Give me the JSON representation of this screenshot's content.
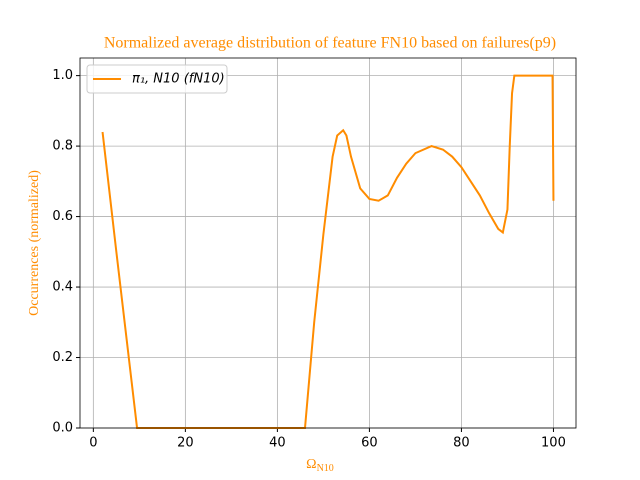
{
  "chart_data": {
    "type": "line",
    "title": "Normalized average distribution of feature FN10 based on failures(p9)",
    "xlabel": {
      "base": "Ω",
      "subscript": "N10"
    },
    "ylabel": "Occurrences (normalized)",
    "x": [
      2,
      5,
      9.5,
      20,
      30,
      40,
      46,
      48,
      50,
      52,
      53,
      54.3,
      55,
      56,
      58,
      60,
      62,
      64,
      66,
      68,
      70,
      73.5,
      76,
      78,
      80,
      82,
      84,
      86,
      88,
      89,
      90,
      90.5,
      91,
      91.5,
      99.8,
      100
    ],
    "series": [
      {
        "name": "π₁, N10 (fN10)",
        "color": "#ff8c00",
        "values": [
          0.84,
          0.5,
          0,
          0,
          0,
          0,
          0,
          0.3,
          0.55,
          0.77,
          0.83,
          0.845,
          0.83,
          0.77,
          0.68,
          0.65,
          0.645,
          0.66,
          0.71,
          0.75,
          0.78,
          0.8,
          0.79,
          0.77,
          0.74,
          0.7,
          0.66,
          0.61,
          0.565,
          0.555,
          0.62,
          0.8,
          0.95,
          1.0,
          1.0,
          0.645
        ]
      }
    ],
    "xlim": [
      -2.9,
      104.9
    ],
    "ylim": [
      0,
      1.05
    ],
    "xticks": [
      0,
      20,
      40,
      60,
      80,
      100
    ],
    "yticks": [
      {
        "value": 0,
        "label": "0.0"
      },
      {
        "value": 0.2,
        "label": "0.2"
      },
      {
        "value": 0.4,
        "label": "0.4"
      },
      {
        "value": 0.6,
        "label": "0.6"
      },
      {
        "value": 0.8,
        "label": "0.8"
      },
      {
        "value": 1,
        "label": "1.0"
      }
    ],
    "grid": true,
    "legend": "upper left",
    "label_color": "#ff8c00"
  }
}
